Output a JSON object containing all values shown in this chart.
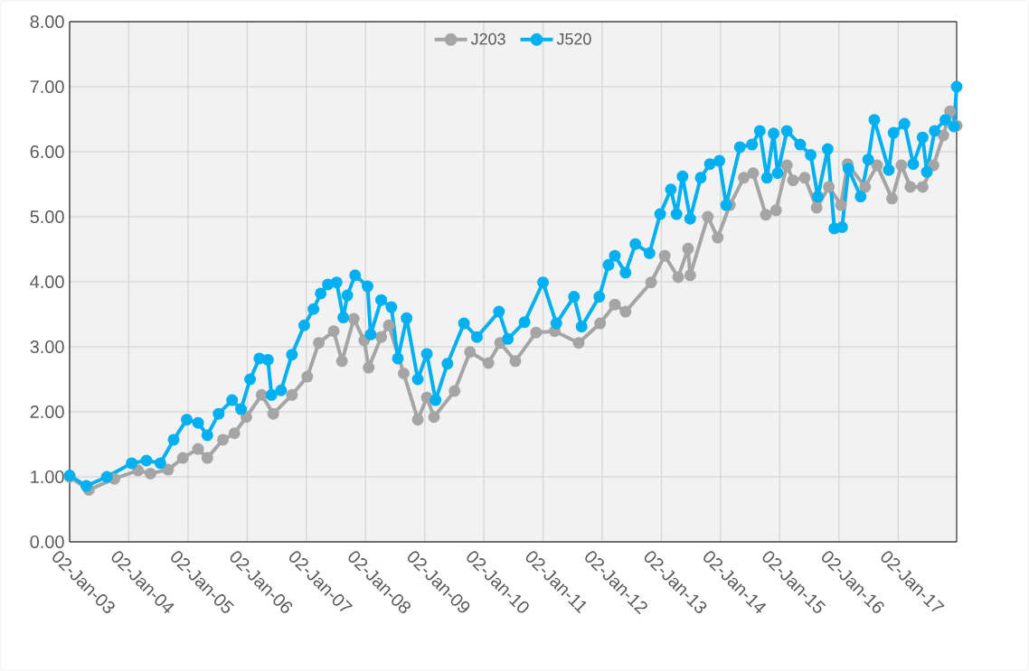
{
  "chart_data": {
    "type": "line",
    "xlim": [
      "2003-01-02",
      "2017-12-29"
    ],
    "xticks": [
      {
        "value": "2003-01-02",
        "label": "02-Jan-03"
      },
      {
        "value": "2004-01-02",
        "label": "02-Jan-04"
      },
      {
        "value": "2005-01-02",
        "label": "02-Jan-05"
      },
      {
        "value": "2006-01-02",
        "label": "02-Jan-06"
      },
      {
        "value": "2007-01-02",
        "label": "02-Jan-07"
      },
      {
        "value": "2008-01-02",
        "label": "02-Jan-08"
      },
      {
        "value": "2009-01-02",
        "label": "02-Jan-09"
      },
      {
        "value": "2010-01-02",
        "label": "02-Jan-10"
      },
      {
        "value": "2011-01-02",
        "label": "02-Jan-11"
      },
      {
        "value": "2012-01-02",
        "label": "02-Jan-12"
      },
      {
        "value": "2013-01-02",
        "label": "02-Jan-13"
      },
      {
        "value": "2014-01-02",
        "label": "02-Jan-14"
      },
      {
        "value": "2015-01-02",
        "label": "02-Jan-15"
      },
      {
        "value": "2016-01-02",
        "label": "02-Jan-16"
      },
      {
        "value": "2017-01-02",
        "label": "02-Jan-17"
      }
    ],
    "ylim": [
      0,
      8
    ],
    "yticks": [
      {
        "value": 0,
        "label": "0.00"
      },
      {
        "value": 1,
        "label": "1.00"
      },
      {
        "value": 2,
        "label": "2.00"
      },
      {
        "value": 3,
        "label": "3.00"
      },
      {
        "value": 4,
        "label": "4.00"
      },
      {
        "value": 5,
        "label": "5.00"
      },
      {
        "value": 6,
        "label": "6.00"
      },
      {
        "value": 7,
        "label": "7.00"
      },
      {
        "value": 8,
        "label": "8.00"
      }
    ],
    "grid": true,
    "legend": "top",
    "marker": "circle",
    "line_style": "solid",
    "series": [
      {
        "name": "J203",
        "color": "#a5a5a5",
        "x": [
          "2003-01-02",
          "2003-05-01",
          "2003-10-05",
          "2004-02-28",
          "2004-05-15",
          "2004-09-01",
          "2004-12-01",
          "2005-03-05",
          "2005-05-01",
          "2005-08-05",
          "2005-10-15",
          "2005-12-28",
          "2006-04-01",
          "2006-06-12",
          "2006-10-05",
          "2007-01-08",
          "2007-03-20",
          "2007-06-20",
          "2007-08-10",
          "2007-10-22",
          "2007-12-25",
          "2008-01-22",
          "2008-04-08",
          "2008-05-25",
          "2008-08-25",
          "2008-11-20",
          "2009-01-15",
          "2009-02-28",
          "2009-07-05",
          "2009-10-08",
          "2010-01-30",
          "2010-04-12",
          "2010-07-15",
          "2010-11-20",
          "2011-03-15",
          "2011-08-10",
          "2011-12-20",
          "2012-03-20",
          "2012-05-25",
          "2012-10-30",
          "2013-01-22",
          "2013-04-15",
          "2013-06-15",
          "2013-06-28",
          "2013-10-15",
          "2013-12-15",
          "2014-02-28",
          "2014-05-25",
          "2014-07-22",
          "2014-10-08",
          "2014-12-10",
          "2015-02-15",
          "2015-03-25",
          "2015-06-05",
          "2015-08-18",
          "2015-11-01",
          "2016-01-15",
          "2016-02-25",
          "2016-06-12",
          "2016-08-25",
          "2016-11-25",
          "2017-01-22",
          "2017-03-18",
          "2017-06-02",
          "2017-08-08",
          "2017-10-08",
          "2017-11-18",
          "2017-12-29"
        ],
        "values": [
          1.0,
          0.8,
          0.97,
          1.1,
          1.05,
          1.11,
          1.29,
          1.43,
          1.29,
          1.57,
          1.67,
          1.92,
          2.26,
          1.97,
          2.26,
          2.54,
          3.06,
          3.24,
          2.78,
          3.43,
          3.1,
          2.68,
          3.15,
          3.33,
          2.59,
          1.88,
          2.22,
          1.92,
          2.32,
          2.92,
          2.75,
          3.06,
          2.78,
          3.22,
          3.24,
          3.06,
          3.36,
          3.65,
          3.54,
          3.99,
          4.4,
          4.07,
          4.51,
          4.1,
          5.0,
          4.68,
          5.18,
          5.6,
          5.67,
          5.03,
          5.1,
          5.79,
          5.56,
          5.6,
          5.14,
          5.46,
          5.18,
          5.81,
          5.46,
          5.79,
          5.28,
          5.79,
          5.46,
          5.46,
          5.79,
          6.25,
          6.62,
          6.4
        ]
      },
      {
        "name": "J520",
        "color": "#00b0f0",
        "x": [
          "2003-01-02",
          "2003-04-15",
          "2003-08-20",
          "2004-01-20",
          "2004-04-20",
          "2004-07-15",
          "2004-10-05",
          "2004-12-25",
          "2005-03-05",
          "2005-05-01",
          "2005-07-10",
          "2005-10-01",
          "2005-11-25",
          "2006-01-20",
          "2006-03-18",
          "2006-05-10",
          "2006-06-01",
          "2006-07-30",
          "2006-10-05",
          "2006-12-20",
          "2007-02-15",
          "2007-04-01",
          "2007-05-15",
          "2007-07-08",
          "2007-08-18",
          "2007-09-12",
          "2007-10-30",
          "2008-01-15",
          "2008-02-03",
          "2008-04-08",
          "2008-06-10",
          "2008-07-20",
          "2008-09-12",
          "2008-11-20",
          "2009-01-15",
          "2009-03-10",
          "2009-05-22",
          "2009-09-01",
          "2009-11-20",
          "2010-04-05",
          "2010-05-30",
          "2010-09-10",
          "2011-01-02",
          "2011-03-25",
          "2011-07-12",
          "2011-08-28",
          "2011-12-15",
          "2012-02-10",
          "2012-03-20",
          "2012-05-25",
          "2012-07-25",
          "2012-10-20",
          "2012-12-25",
          "2013-03-01",
          "2013-04-05",
          "2013-05-12",
          "2013-06-28",
          "2013-09-01",
          "2013-10-28",
          "2013-12-25",
          "2014-02-05",
          "2014-05-01",
          "2014-07-15",
          "2014-09-01",
          "2014-10-15",
          "2014-11-25",
          "2014-12-20",
          "2015-02-15",
          "2015-05-08",
          "2015-07-12",
          "2015-08-25",
          "2015-10-25",
          "2015-12-05",
          "2016-01-22",
          "2016-03-01",
          "2016-05-15",
          "2016-07-01",
          "2016-08-08",
          "2016-11-05",
          "2016-12-05",
          "2017-02-10",
          "2017-04-05",
          "2017-06-02",
          "2017-06-28",
          "2017-08-15",
          "2017-10-20",
          "2017-12-12",
          "2017-12-29"
        ],
        "values": [
          1.02,
          0.86,
          1.0,
          1.21,
          1.25,
          1.21,
          1.57,
          1.88,
          1.83,
          1.64,
          1.97,
          2.18,
          2.04,
          2.5,
          2.82,
          2.8,
          2.26,
          2.33,
          2.88,
          3.33,
          3.58,
          3.82,
          3.96,
          3.99,
          3.45,
          3.79,
          4.1,
          3.93,
          3.19,
          3.72,
          3.61,
          2.82,
          3.44,
          2.5,
          2.89,
          2.18,
          2.74,
          3.36,
          3.15,
          3.54,
          3.12,
          3.38,
          3.99,
          3.36,
          3.77,
          3.31,
          3.77,
          4.26,
          4.4,
          4.14,
          4.58,
          4.44,
          5.04,
          5.42,
          5.04,
          5.62,
          4.97,
          5.6,
          5.81,
          5.86,
          5.18,
          6.07,
          6.11,
          6.32,
          5.6,
          6.28,
          5.67,
          6.32,
          6.11,
          5.95,
          5.31,
          6.04,
          4.82,
          4.84,
          5.74,
          5.31,
          5.88,
          6.49,
          5.72,
          6.29,
          6.43,
          5.81,
          6.22,
          5.69,
          6.32,
          6.49,
          6.39,
          7.0
        ]
      }
    ]
  }
}
